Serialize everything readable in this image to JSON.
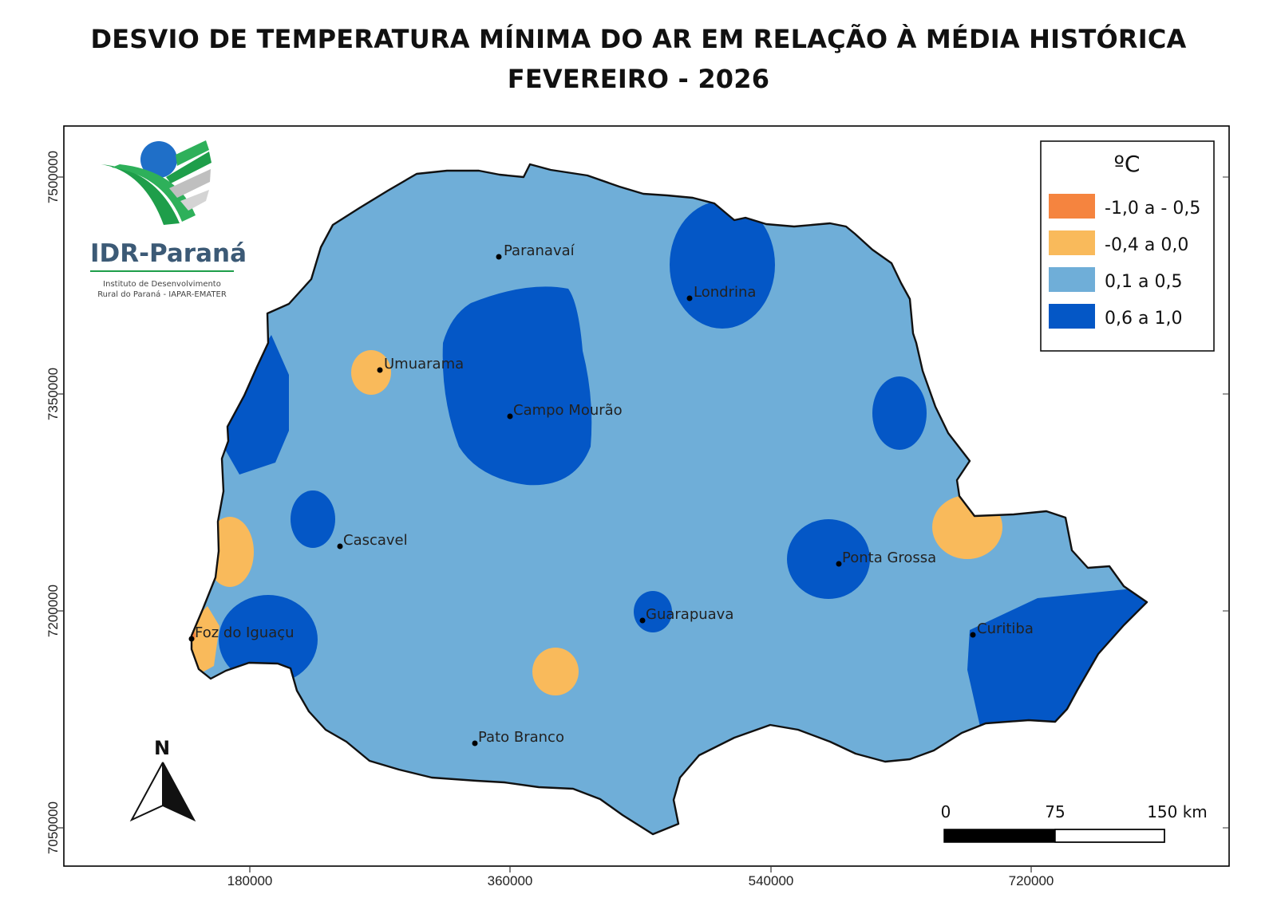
{
  "title_line1": "DESVIO DE TEMPERATURA MÍNIMA DO AR EM RELAÇÃO À MÉDIA HISTÓRICA",
  "title_line2": "FEVEREIRO - 2026",
  "logo": {
    "name": "IDR-Paraná",
    "subtitle_line1": "Instituto de Desenvolvimento",
    "subtitle_line2": "Rural do Paraná - IAPAR-EMATER"
  },
  "legend": {
    "title": "ºC",
    "items": [
      {
        "label": "-1,0 a - 0,5",
        "color": "#F5843F"
      },
      {
        "label": "-0,4 a 0,0",
        "color": "#F9BA5B"
      },
      {
        "label": "0,1 a 0,5",
        "color": "#6FAED8"
      },
      {
        "label": "0,6 a 1,0",
        "color": "#0457C6"
      }
    ]
  },
  "colors": {
    "state_fill": "#6FAED8",
    "high": "#0457C6",
    "low": "#F9BA5B",
    "lowest": "#F5843F",
    "frame": "#000000"
  },
  "axis": {
    "x_ticks": [
      "180000",
      "360000",
      "540000",
      "720000"
    ],
    "y_ticks": [
      "7500000",
      "7350000",
      "7200000",
      "7050000"
    ]
  },
  "cities": [
    "Paranavaí",
    "Londrina",
    "Umuarama",
    "Campo Mourão",
    "Cascavel",
    "Ponta Grossa",
    "Guarapuava",
    "Foz do Iguaçu",
    "Curitiba",
    "Pato Branco"
  ],
  "scale_bar": {
    "labels": [
      "0",
      "75",
      "150 km"
    ]
  },
  "north_arrow": {
    "label": "N"
  }
}
